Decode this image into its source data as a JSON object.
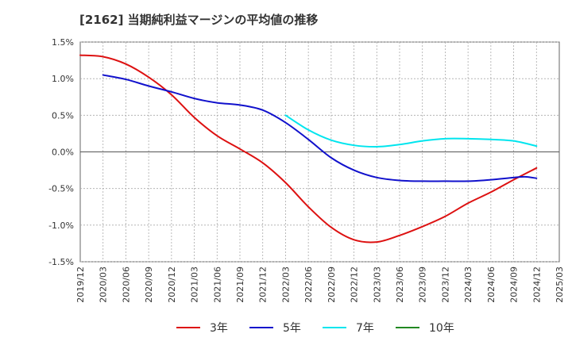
{
  "chart_data": {
    "type": "line",
    "title": "[2162]  当期純利益マージンの平均値の推移",
    "xlabel": "",
    "ylabel": "",
    "ylim": [
      -1.5,
      1.5
    ],
    "y_ticks": [
      "1.5%",
      "1.0%",
      "0.5%",
      "0.0%",
      "-0.5%",
      "-1.0%",
      "-1.5%"
    ],
    "y_tick_values": [
      1.5,
      1.0,
      0.5,
      0.0,
      -0.5,
      -1.0,
      -1.5
    ],
    "x_ticks": [
      "2019/12",
      "2020/03",
      "2020/06",
      "2020/09",
      "2020/12",
      "2021/03",
      "2021/06",
      "2021/09",
      "2021/12",
      "2022/03",
      "2022/06",
      "2022/09",
      "2022/12",
      "2023/03",
      "2023/06",
      "2023/09",
      "2023/12",
      "2024/03",
      "2024/06",
      "2024/09",
      "2024/12",
      "2025/03"
    ],
    "grid": true,
    "legend_position": "bottom",
    "series": [
      {
        "name": "3年",
        "color": "#dd1111",
        "points": [
          [
            0,
            1.32
          ],
          [
            1,
            1.3
          ],
          [
            2,
            1.2
          ],
          [
            3,
            1.02
          ],
          [
            4,
            0.78
          ],
          [
            5,
            0.47
          ],
          [
            6,
            0.22
          ],
          [
            7,
            0.04
          ],
          [
            8,
            -0.15
          ],
          [
            9,
            -0.42
          ],
          [
            10,
            -0.75
          ],
          [
            11,
            -1.03
          ],
          [
            12,
            -1.2
          ],
          [
            13,
            -1.23
          ],
          [
            14,
            -1.14
          ],
          [
            15,
            -1.02
          ],
          [
            16,
            -0.88
          ],
          [
            17,
            -0.7
          ],
          [
            18,
            -0.55
          ],
          [
            19,
            -0.38
          ],
          [
            20,
            -0.22
          ]
        ]
      },
      {
        "name": "5年",
        "color": "#1111cc",
        "points": [
          [
            1,
            1.05
          ],
          [
            2,
            0.99
          ],
          [
            3,
            0.9
          ],
          [
            4,
            0.82
          ],
          [
            5,
            0.73
          ],
          [
            6,
            0.67
          ],
          [
            7,
            0.64
          ],
          [
            8,
            0.57
          ],
          [
            9,
            0.4
          ],
          [
            10,
            0.17
          ],
          [
            11,
            -0.08
          ],
          [
            12,
            -0.25
          ],
          [
            13,
            -0.35
          ],
          [
            14,
            -0.39
          ],
          [
            15,
            -0.4
          ],
          [
            16,
            -0.4
          ],
          [
            17,
            -0.4
          ],
          [
            18,
            -0.38
          ],
          [
            19,
            -0.35
          ],
          [
            19.5,
            -0.34
          ],
          [
            20,
            -0.36
          ]
        ]
      },
      {
        "name": "7年",
        "color": "#00e5ee",
        "points": [
          [
            9,
            0.5
          ],
          [
            10,
            0.3
          ],
          [
            11,
            0.16
          ],
          [
            12,
            0.09
          ],
          [
            13,
            0.07
          ],
          [
            14,
            0.1
          ],
          [
            15,
            0.15
          ],
          [
            16,
            0.18
          ],
          [
            17,
            0.18
          ],
          [
            18,
            0.17
          ],
          [
            19,
            0.15
          ],
          [
            20,
            0.08
          ]
        ]
      },
      {
        "name": "10年",
        "color": "#228822",
        "points": []
      }
    ]
  }
}
